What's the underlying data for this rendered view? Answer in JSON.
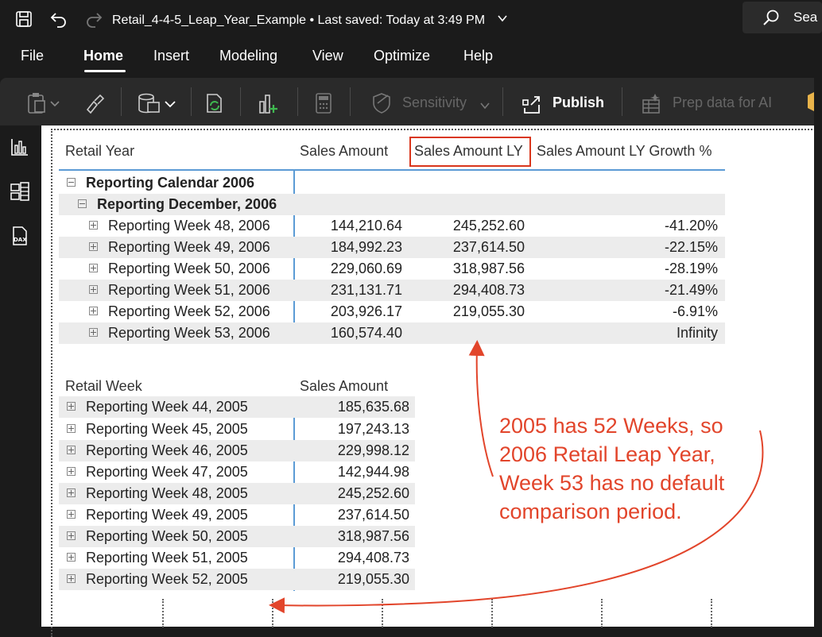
{
  "titlebar": {
    "file_name": "Retail_4-4-5_Leap_Year_Example",
    "saved_status": "• Last saved: Today at 3:49 PM",
    "search_label": "Sea"
  },
  "menu": {
    "items": [
      "File",
      "Home",
      "Insert",
      "Modeling",
      "View",
      "Optimize",
      "Help"
    ],
    "active": "Home"
  },
  "ribbon": {
    "sensitivity_label": "Sensitivity",
    "publish_label": "Publish",
    "prep_label": "Prep data for AI"
  },
  "table1": {
    "headers": [
      "Retail Year",
      "Sales Amount",
      "Sales Amount LY",
      "Sales Amount LY Growth %"
    ],
    "group_label": "Reporting Calendar 2006",
    "subgroup_label": "Reporting December, 2006",
    "rows": [
      {
        "label": "Reporting Week 48, 2006",
        "sales": "144,210.64",
        "ly": "245,252.60",
        "growth": "-41.20%"
      },
      {
        "label": "Reporting Week 49, 2006",
        "sales": "184,992.23",
        "ly": "237,614.50",
        "growth": "-22.15%"
      },
      {
        "label": "Reporting Week 50, 2006",
        "sales": "229,060.69",
        "ly": "318,987.56",
        "growth": "-28.19%"
      },
      {
        "label": "Reporting Week 51, 2006",
        "sales": "231,131.71",
        "ly": "294,408.73",
        "growth": "-21.49%"
      },
      {
        "label": "Reporting Week 52, 2006",
        "sales": "203,926.17",
        "ly": "219,055.30",
        "growth": "-6.91%"
      },
      {
        "label": "Reporting Week 53, 2006",
        "sales": "160,574.40",
        "ly": "",
        "growth": "Infinity"
      }
    ]
  },
  "table2": {
    "headers": [
      "Retail Week",
      "Sales Amount"
    ],
    "partial_row": {
      "label": "Reporting Week 44, 2005",
      "sales": "185,635.68"
    },
    "rows": [
      {
        "label": "Reporting Week 45, 2005",
        "sales": "197,243.13"
      },
      {
        "label": "Reporting Week 46, 2005",
        "sales": "229,998.12"
      },
      {
        "label": "Reporting Week 47, 2005",
        "sales": "142,944.98"
      },
      {
        "label": "Reporting Week 48, 2005",
        "sales": "245,252.60"
      },
      {
        "label": "Reporting Week 49, 2005",
        "sales": "237,614.50"
      },
      {
        "label": "Reporting Week 50, 2005",
        "sales": "318,987.56"
      },
      {
        "label": "Reporting Week 51, 2005",
        "sales": "294,408.73"
      },
      {
        "label": "Reporting Week 52, 2005",
        "sales": "219,055.30"
      }
    ]
  },
  "annotation": {
    "lines": [
      "2005 has 52 Weeks, so",
      "2006 Retail Leap Year,",
      "Week 53 has no default",
      "comparison period."
    ],
    "color": "#e2452b"
  },
  "colors": {
    "accent_line": "#5b9bd5",
    "highlight_box": "#d9361c"
  }
}
